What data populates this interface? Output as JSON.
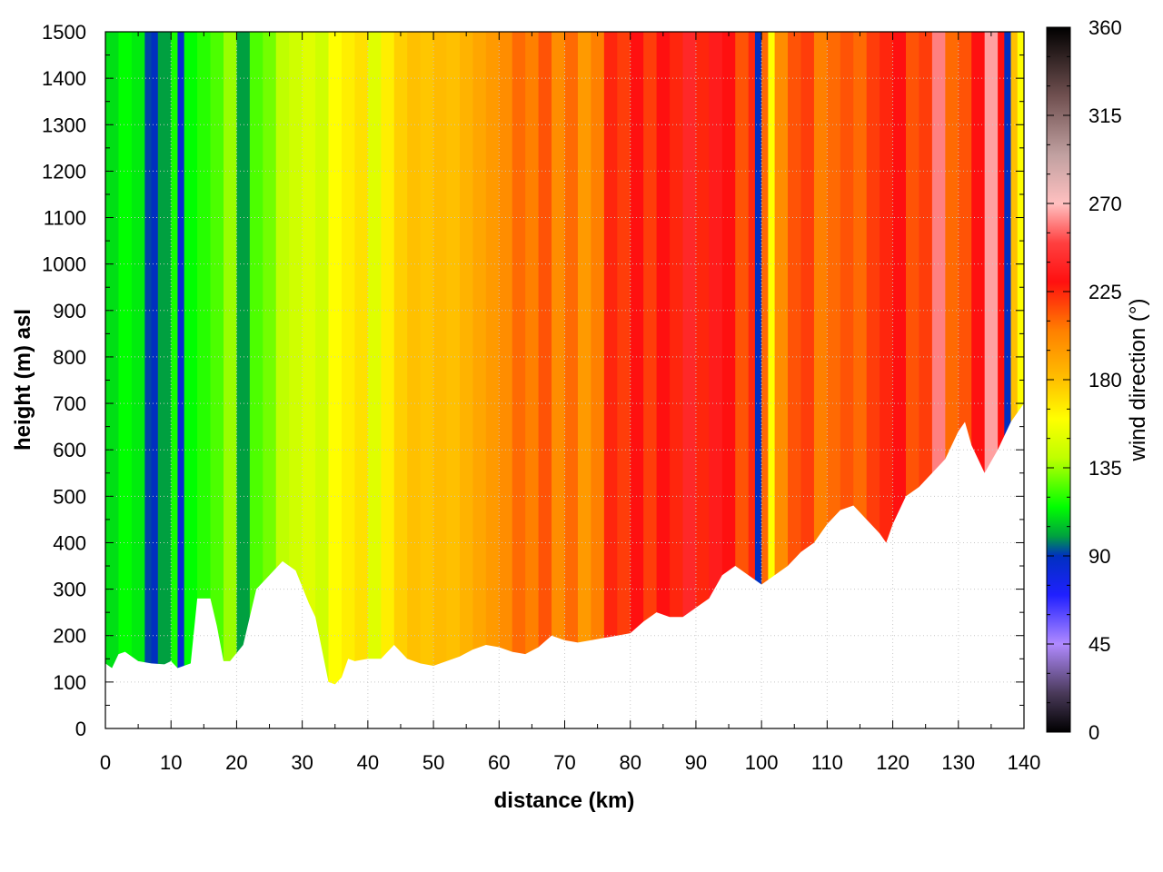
{
  "chart_data": {
    "type": "heatmap",
    "title": "",
    "xlabel": "distance (km)",
    "ylabel": "height (m) asl",
    "xlim": [
      0,
      140
    ],
    "ylim": [
      0,
      1500
    ],
    "x_ticks": [
      0,
      10,
      20,
      30,
      40,
      50,
      60,
      70,
      80,
      90,
      100,
      110,
      120,
      130,
      140
    ],
    "y_ticks": [
      0,
      100,
      200,
      300,
      400,
      500,
      600,
      700,
      800,
      900,
      1000,
      1100,
      1200,
      1300,
      1400,
      1500
    ],
    "grid": true,
    "colorbar": {
      "label": "wind direction (°)",
      "range": [
        0,
        360
      ],
      "ticks": [
        0,
        45,
        90,
        135,
        180,
        225,
        270,
        315,
        360
      ],
      "colors": [
        {
          "value": 0,
          "color": "#000000"
        },
        {
          "value": 20,
          "color": "#4a3a5a"
        },
        {
          "value": 45,
          "color": "#b08aff"
        },
        {
          "value": 70,
          "color": "#2020ff"
        },
        {
          "value": 90,
          "color": "#0030c0"
        },
        {
          "value": 100,
          "color": "#00a040"
        },
        {
          "value": 115,
          "color": "#00ff00"
        },
        {
          "value": 140,
          "color": "#bfff00"
        },
        {
          "value": 160,
          "color": "#ffff00"
        },
        {
          "value": 180,
          "color": "#ffc000"
        },
        {
          "value": 205,
          "color": "#ff8000"
        },
        {
          "value": 230,
          "color": "#ff1010"
        },
        {
          "value": 250,
          "color": "#ff4040"
        },
        {
          "value": 270,
          "color": "#ffc0c0"
        },
        {
          "value": 295,
          "color": "#c0a0a0"
        },
        {
          "value": 325,
          "color": "#705050"
        },
        {
          "value": 360,
          "color": "#000000"
        }
      ]
    },
    "terrain": {
      "distance_km": [
        0,
        1,
        2,
        3,
        5,
        7,
        9,
        10,
        11,
        13,
        14,
        16,
        17,
        18,
        19,
        21,
        23,
        25,
        27,
        29,
        31,
        32,
        33,
        34,
        35,
        36,
        37,
        38,
        40,
        42,
        44,
        46,
        48,
        50,
        52,
        54,
        56,
        58,
        60,
        62,
        64,
        66,
        68,
        70,
        72,
        74,
        76,
        78,
        80,
        82,
        84,
        86,
        88,
        90,
        92,
        94,
        96,
        98,
        100,
        102,
        104,
        106,
        108,
        110,
        112,
        114,
        116,
        118,
        119,
        120,
        122,
        124,
        126,
        128,
        130,
        131,
        132,
        133,
        134,
        136,
        138,
        139,
        140
      ],
      "height_m": [
        140,
        130,
        160,
        165,
        145,
        140,
        138,
        145,
        130,
        140,
        280,
        280,
        220,
        145,
        145,
        180,
        300,
        330,
        360,
        340,
        270,
        240,
        170,
        100,
        95,
        110,
        150,
        145,
        150,
        150,
        180,
        150,
        140,
        135,
        145,
        155,
        170,
        180,
        175,
        165,
        160,
        175,
        200,
        190,
        185,
        190,
        195,
        200,
        205,
        230,
        250,
        240,
        240,
        260,
        280,
        330,
        350,
        330,
        310,
        330,
        350,
        380,
        400,
        440,
        470,
        480,
        450,
        420,
        400,
        440,
        500,
        520,
        550,
        580,
        640,
        660,
        610,
        580,
        550,
        600,
        660,
        680,
        700
      ]
    },
    "series": [
      {
        "name": "dominant wind direction by distance (deg)",
        "x": [
          0,
          2,
          4,
          6,
          7,
          8,
          10,
          11,
          12,
          14,
          16,
          18,
          20,
          22,
          24,
          26,
          28,
          30,
          32,
          34,
          36,
          38,
          40,
          42,
          44,
          46,
          48,
          50,
          52,
          54,
          56,
          58,
          60,
          62,
          64,
          66,
          68,
          70,
          72,
          74,
          76,
          78,
          80,
          82,
          84,
          86,
          88,
          90,
          92,
          94,
          96,
          98,
          99,
          100,
          101,
          102,
          104,
          106,
          108,
          110,
          112,
          114,
          116,
          118,
          120,
          122,
          124,
          126,
          128,
          130,
          132,
          134,
          136,
          137,
          138,
          139
        ],
        "values": [
          110,
          115,
          112,
          92,
          90,
          100,
          118,
          85,
          115,
          120,
          125,
          135,
          100,
          125,
          130,
          140,
          145,
          150,
          145,
          160,
          165,
          170,
          150,
          165,
          175,
          180,
          178,
          182,
          180,
          185,
          190,
          195,
          200,
          210,
          205,
          215,
          200,
          210,
          195,
          205,
          225,
          220,
          230,
          220,
          230,
          225,
          240,
          225,
          235,
          230,
          215,
          225,
          90,
          210,
          160,
          200,
          215,
          220,
          205,
          210,
          215,
          210,
          220,
          225,
          230,
          215,
          220,
          260,
          210,
          215,
          230,
          265,
          230,
          90,
          180,
          160
        ]
      }
    ]
  }
}
